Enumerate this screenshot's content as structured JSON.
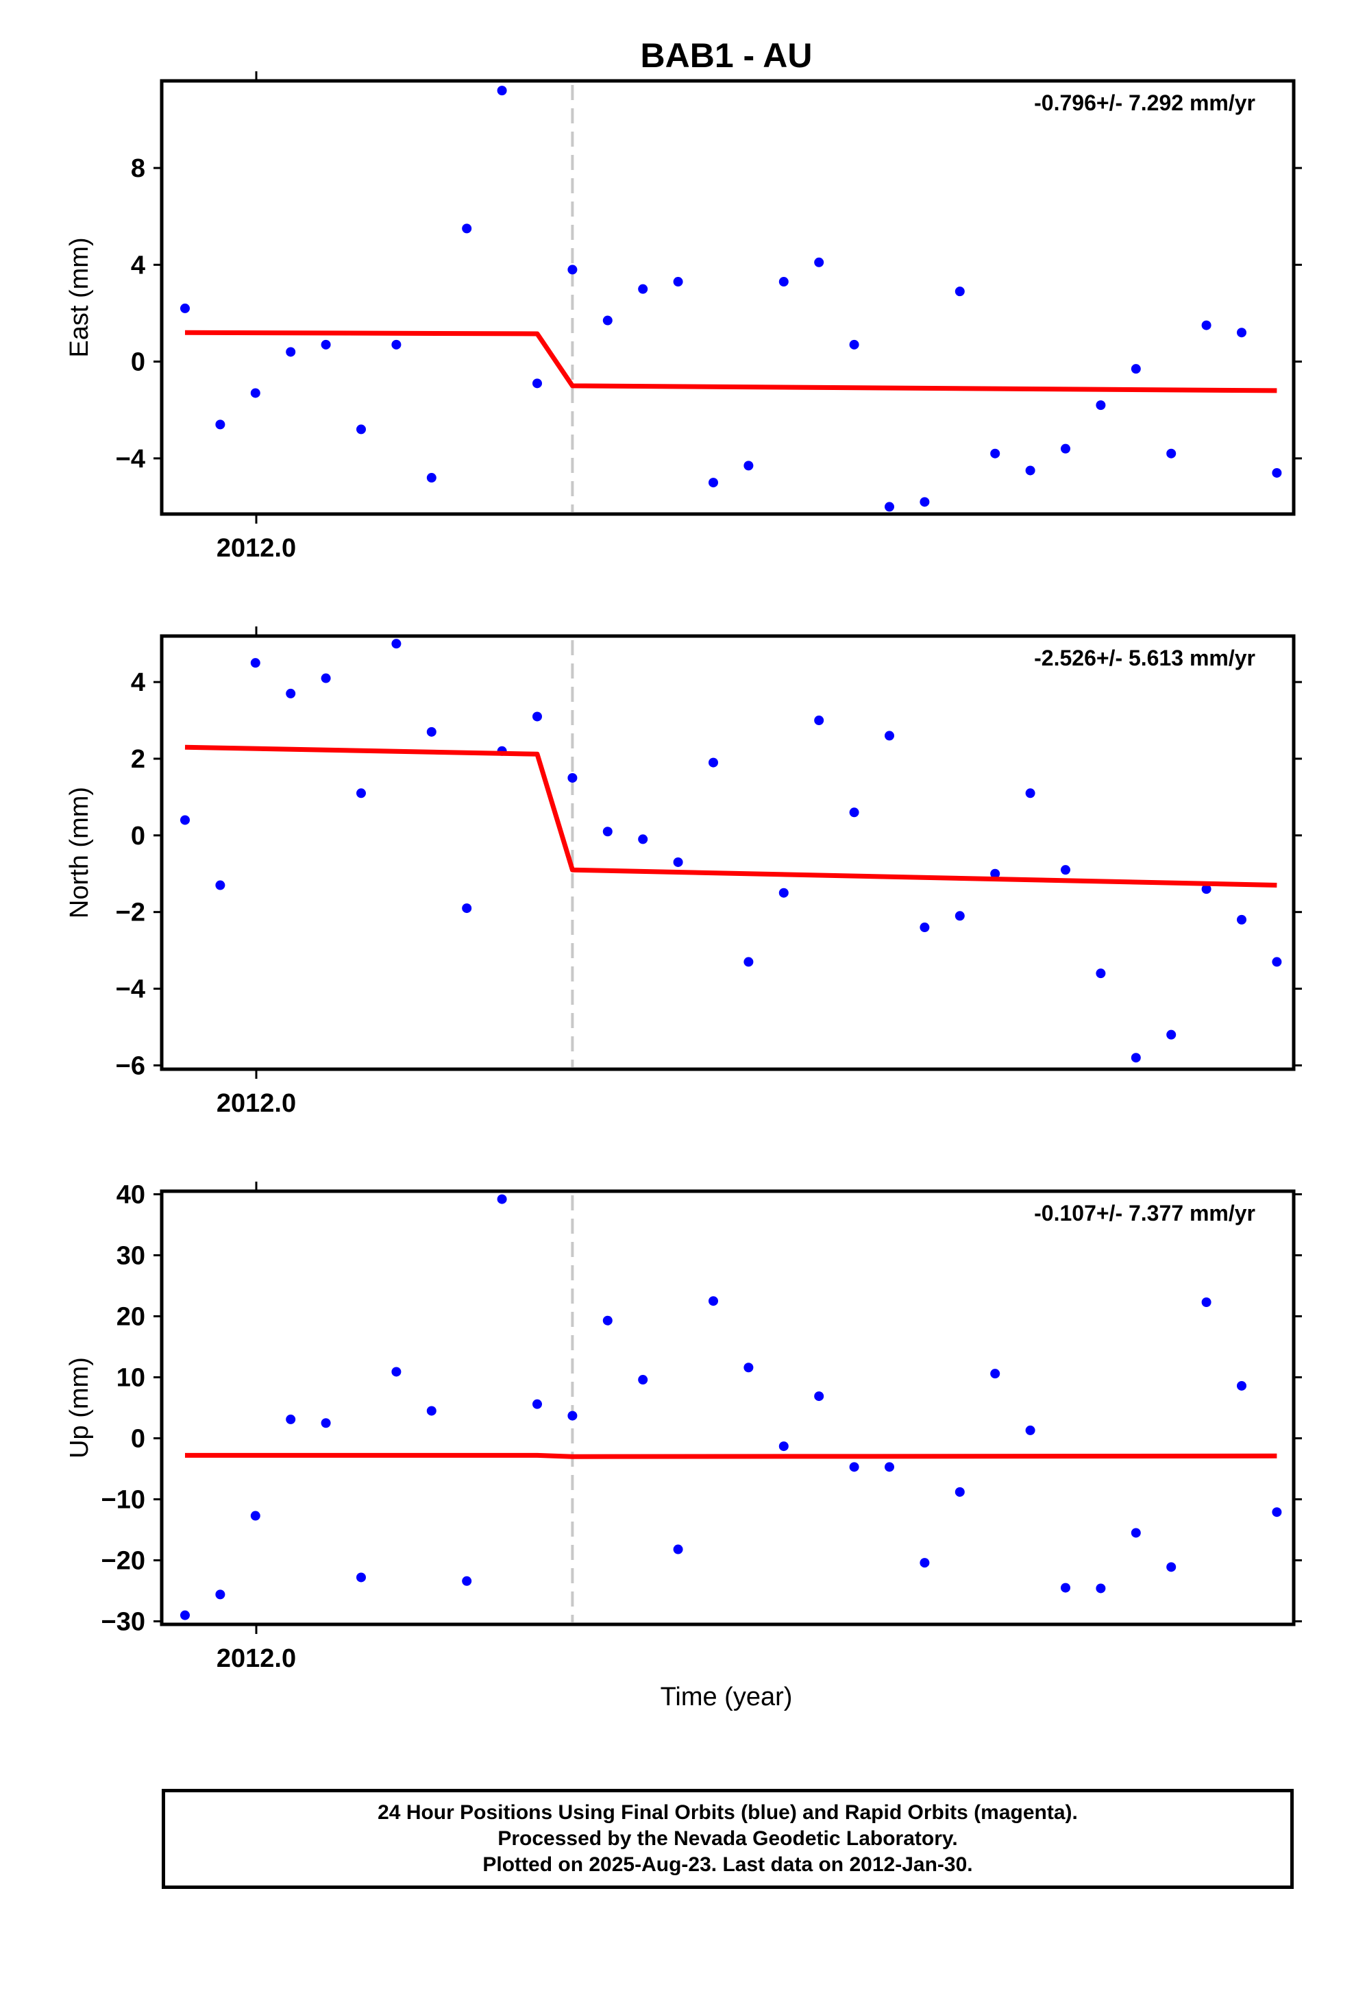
{
  "title": "BAB1 - AU",
  "colors": {
    "final_orbit_points": "#0000ff",
    "model_line": "#ff0000",
    "break_line": "#c8c8c8",
    "frame": "#000000"
  },
  "chart_data": [
    {
      "type": "scatter",
      "ylabel": "East (mm)",
      "xlabel": "",
      "x_tick_label": "2012.0",
      "yticks": [
        -4,
        0,
        4,
        8
      ],
      "ylim": [
        -6.3,
        11.6
      ],
      "rate_text": "-0.796+/- 7.292 mm/yr",
      "break_day": 11,
      "points": [
        2.2,
        -2.6,
        -1.3,
        0.4,
        0.7,
        -2.8,
        0.7,
        -4.8,
        5.5,
        11.2,
        -0.9,
        3.8,
        1.7,
        3.0,
        3.3,
        -5.0,
        -4.3,
        3.3,
        4.1,
        0.7,
        -6.0,
        -5.8,
        2.9,
        -3.8,
        -4.5,
        -3.6,
        -1.8,
        -0.3,
        -3.8,
        1.5,
        1.2,
        -4.6
      ],
      "model": [
        [
          0,
          1.2
        ],
        [
          10,
          1.15
        ],
        [
          11,
          -1.0
        ],
        [
          31,
          -1.2
        ]
      ]
    },
    {
      "type": "scatter",
      "ylabel": "North (mm)",
      "xlabel": "",
      "x_tick_label": "2012.0",
      "yticks": [
        -6,
        -4,
        -2,
        0,
        2,
        4
      ],
      "ylim": [
        -6.1,
        5.2
      ],
      "rate_text": "-2.526+/- 5.613 mm/yr",
      "break_day": 11,
      "points": [
        0.4,
        -1.3,
        4.5,
        3.7,
        4.1,
        1.1,
        5.0,
        2.7,
        -1.9,
        2.2,
        3.1,
        1.5,
        0.1,
        -0.1,
        -0.7,
        1.9,
        -3.3,
        -1.5,
        3.0,
        0.6,
        2.6,
        -2.4,
        -2.1,
        -1.0,
        1.1,
        -0.9,
        -3.6,
        -5.8,
        -5.2,
        -1.4,
        -2.2,
        -3.3
      ],
      "model": [
        [
          0,
          2.3
        ],
        [
          10,
          2.12
        ],
        [
          11,
          -0.9
        ],
        [
          31,
          -1.3
        ]
      ]
    },
    {
      "type": "scatter",
      "ylabel": "Up (mm)",
      "xlabel": "Time (year)",
      "x_tick_label": "2012.0",
      "yticks": [
        -30,
        -20,
        -10,
        0,
        10,
        20,
        30,
        40
      ],
      "ylim": [
        -30.5,
        40.5
      ],
      "rate_text": "-0.107+/- 7.377 mm/yr",
      "break_day": 11,
      "points": [
        -29.0,
        -25.6,
        -12.7,
        3.1,
        2.5,
        -22.8,
        10.9,
        4.5,
        -23.4,
        39.2,
        5.6,
        3.7,
        19.3,
        9.6,
        -18.2,
        22.5,
        11.6,
        -1.3,
        6.9,
        -4.7,
        -4.7,
        -20.4,
        -8.8,
        10.6,
        1.3,
        -24.5,
        -24.6,
        -15.5,
        -21.1,
        22.3,
        8.6,
        -12.1
      ],
      "model": [
        [
          0,
          -2.8
        ],
        [
          10,
          -2.8
        ],
        [
          11,
          -3.0
        ],
        [
          31,
          -2.9
        ]
      ]
    }
  ],
  "footer": {
    "line1": "24 Hour Positions Using Final Orbits (blue) and Rapid Orbits (magenta).",
    "line2": "Processed by the Nevada Geodetic Laboratory.",
    "line3": "Plotted on 2025-Aug-23. Last data on 2012-Jan-30."
  }
}
